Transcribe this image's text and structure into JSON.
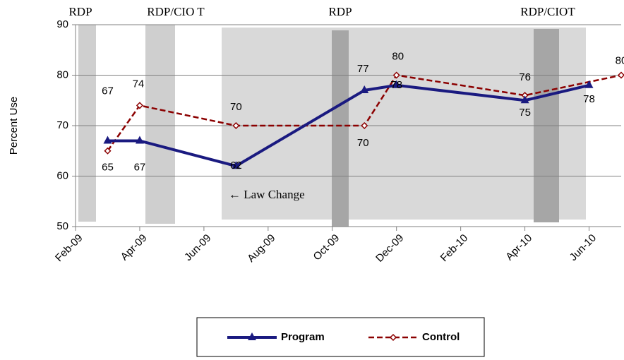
{
  "chart_data": {
    "type": "line",
    "ylabel": "Percent Use",
    "xlim": [
      "2009-02",
      "2010-07"
    ],
    "xticks": [
      {
        "value": "2009-02",
        "label": "Feb-09"
      },
      {
        "value": "2009-04",
        "label": "Apr-09"
      },
      {
        "value": "2009-06",
        "label": "Jun-09"
      },
      {
        "value": "2009-08",
        "label": "Aug-09"
      },
      {
        "value": "2009-10",
        "label": "Oct-09"
      },
      {
        "value": "2009-12",
        "label": "Dec-09"
      },
      {
        "value": "2010-02",
        "label": "Feb-10"
      },
      {
        "value": "2010-04",
        "label": "Apr-10"
      },
      {
        "value": "2010-06",
        "label": "Jun-10"
      }
    ],
    "ylim": [
      50,
      90
    ],
    "yticks": [
      50,
      60,
      70,
      80,
      90
    ],
    "grid": true,
    "series": [
      {
        "name": "Program",
        "color": "#1a1a80",
        "x": [
          "2009-03",
          "2009-04",
          "2009-07",
          "2009-11",
          "2009-12",
          "2010-04",
          "2010-06"
        ],
        "values": [
          67,
          67,
          62,
          77,
          78,
          75,
          78
        ]
      },
      {
        "name": "Control",
        "color": "#8b0000",
        "x": [
          "2009-03",
          "2009-04",
          "2009-07",
          "2009-11",
          "2009-12",
          "2010-04",
          "2010-07"
        ],
        "values": [
          65,
          74,
          70,
          70,
          80,
          76,
          80
        ]
      }
    ],
    "annotations": [
      "RDP",
      "RDP/CIO T",
      "RDP",
      "RDP/CIOT",
      "← Law Change"
    ],
    "legend": "bottom"
  }
}
